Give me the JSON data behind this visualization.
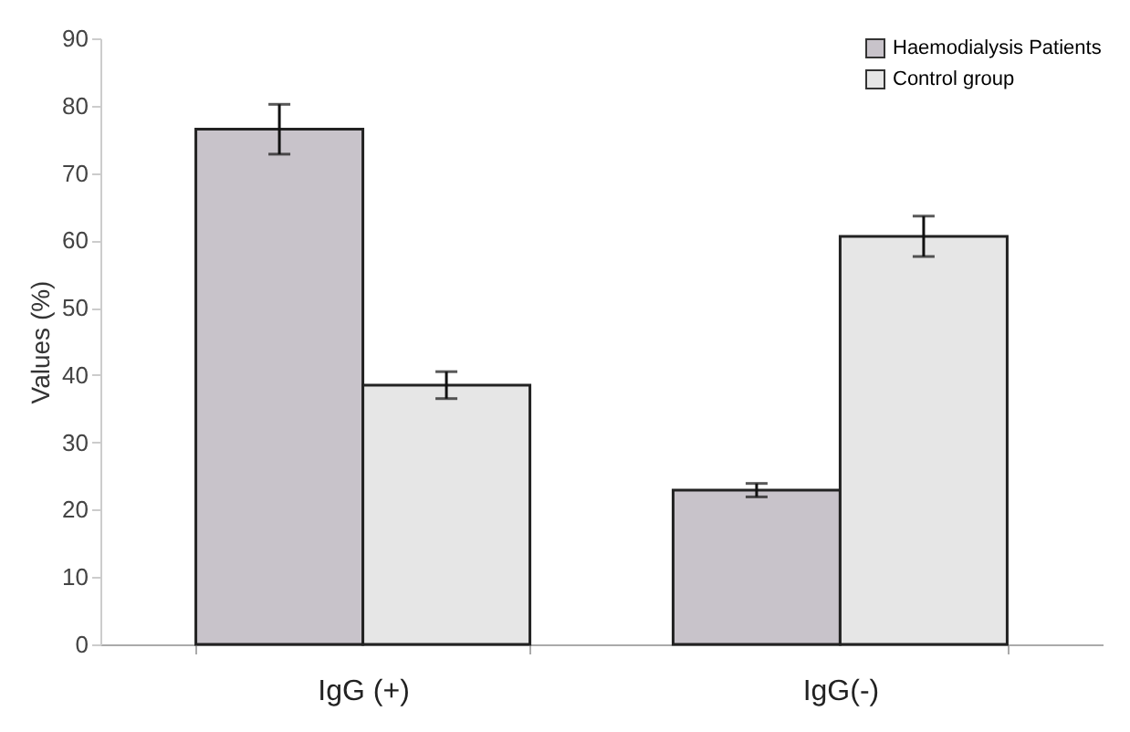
{
  "chart_data": {
    "type": "bar",
    "ylabel": "Values (%)",
    "categories": [
      "IgG (+)",
      "IgG(-)"
    ],
    "series": [
      {
        "name": "Haemodialysis Patients",
        "color": "#c8c3ca",
        "values": [
          76.5,
          22.9
        ],
        "errors": [
          3.7,
          1
        ]
      },
      {
        "name": "Control group",
        "color": "#e6e6e6",
        "values": [
          38.5,
          60.6
        ],
        "errors": [
          2,
          3
        ]
      }
    ],
    "ylim": [
      0,
      90
    ],
    "yticks": [
      0,
      10,
      20,
      30,
      40,
      50,
      60,
      70,
      80,
      90
    ],
    "grid": false,
    "legend": "top right"
  }
}
